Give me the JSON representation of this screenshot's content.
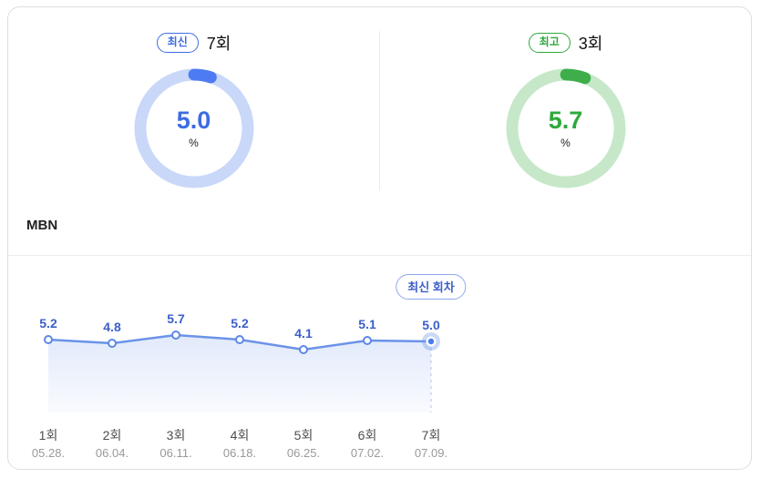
{
  "channel": "MBN",
  "chart_data": [
    {
      "type": "gauge",
      "items": [
        {
          "badge": "최신",
          "episode": "7회",
          "value": "5.0",
          "value_num": 5.0,
          "unit": "%",
          "max": 100,
          "arc_color": "#4d7cf2",
          "track_color": "#c9d8f8",
          "text_color": "#3d6ce2"
        },
        {
          "badge": "최고",
          "episode": "3회",
          "value": "5.7",
          "value_num": 5.7,
          "unit": "%",
          "max": 100,
          "arc_color": "#3fae4a",
          "track_color": "#c6e8c9",
          "text_color": "#2fa93c"
        }
      ]
    },
    {
      "type": "line",
      "categories": [
        "1회",
        "2회",
        "3회",
        "4회",
        "5회",
        "6회",
        "7회"
      ],
      "category_dates": [
        "05.28.",
        "06.04.",
        "06.11.",
        "06.18.",
        "06.25.",
        "07.02.",
        "07.09."
      ],
      "values": [
        5.2,
        4.8,
        5.7,
        5.2,
        4.1,
        5.1,
        5.0
      ],
      "latest_label": "최신 회차",
      "latest_index": 6,
      "title": "",
      "xlabel": "",
      "ylabel": "",
      "grid": false,
      "legend": false,
      "line_color": "#6b93e8",
      "fill_color": "#6b93e8",
      "label_color": "#3a5fc8",
      "point_stroke": "#5d88e6",
      "latest_point_color": "#4a7bf0",
      "dash_color": "#b3c3ea",
      "axis_label_color": "#4d4d4d",
      "axis_date_color": "#999999"
    }
  ]
}
